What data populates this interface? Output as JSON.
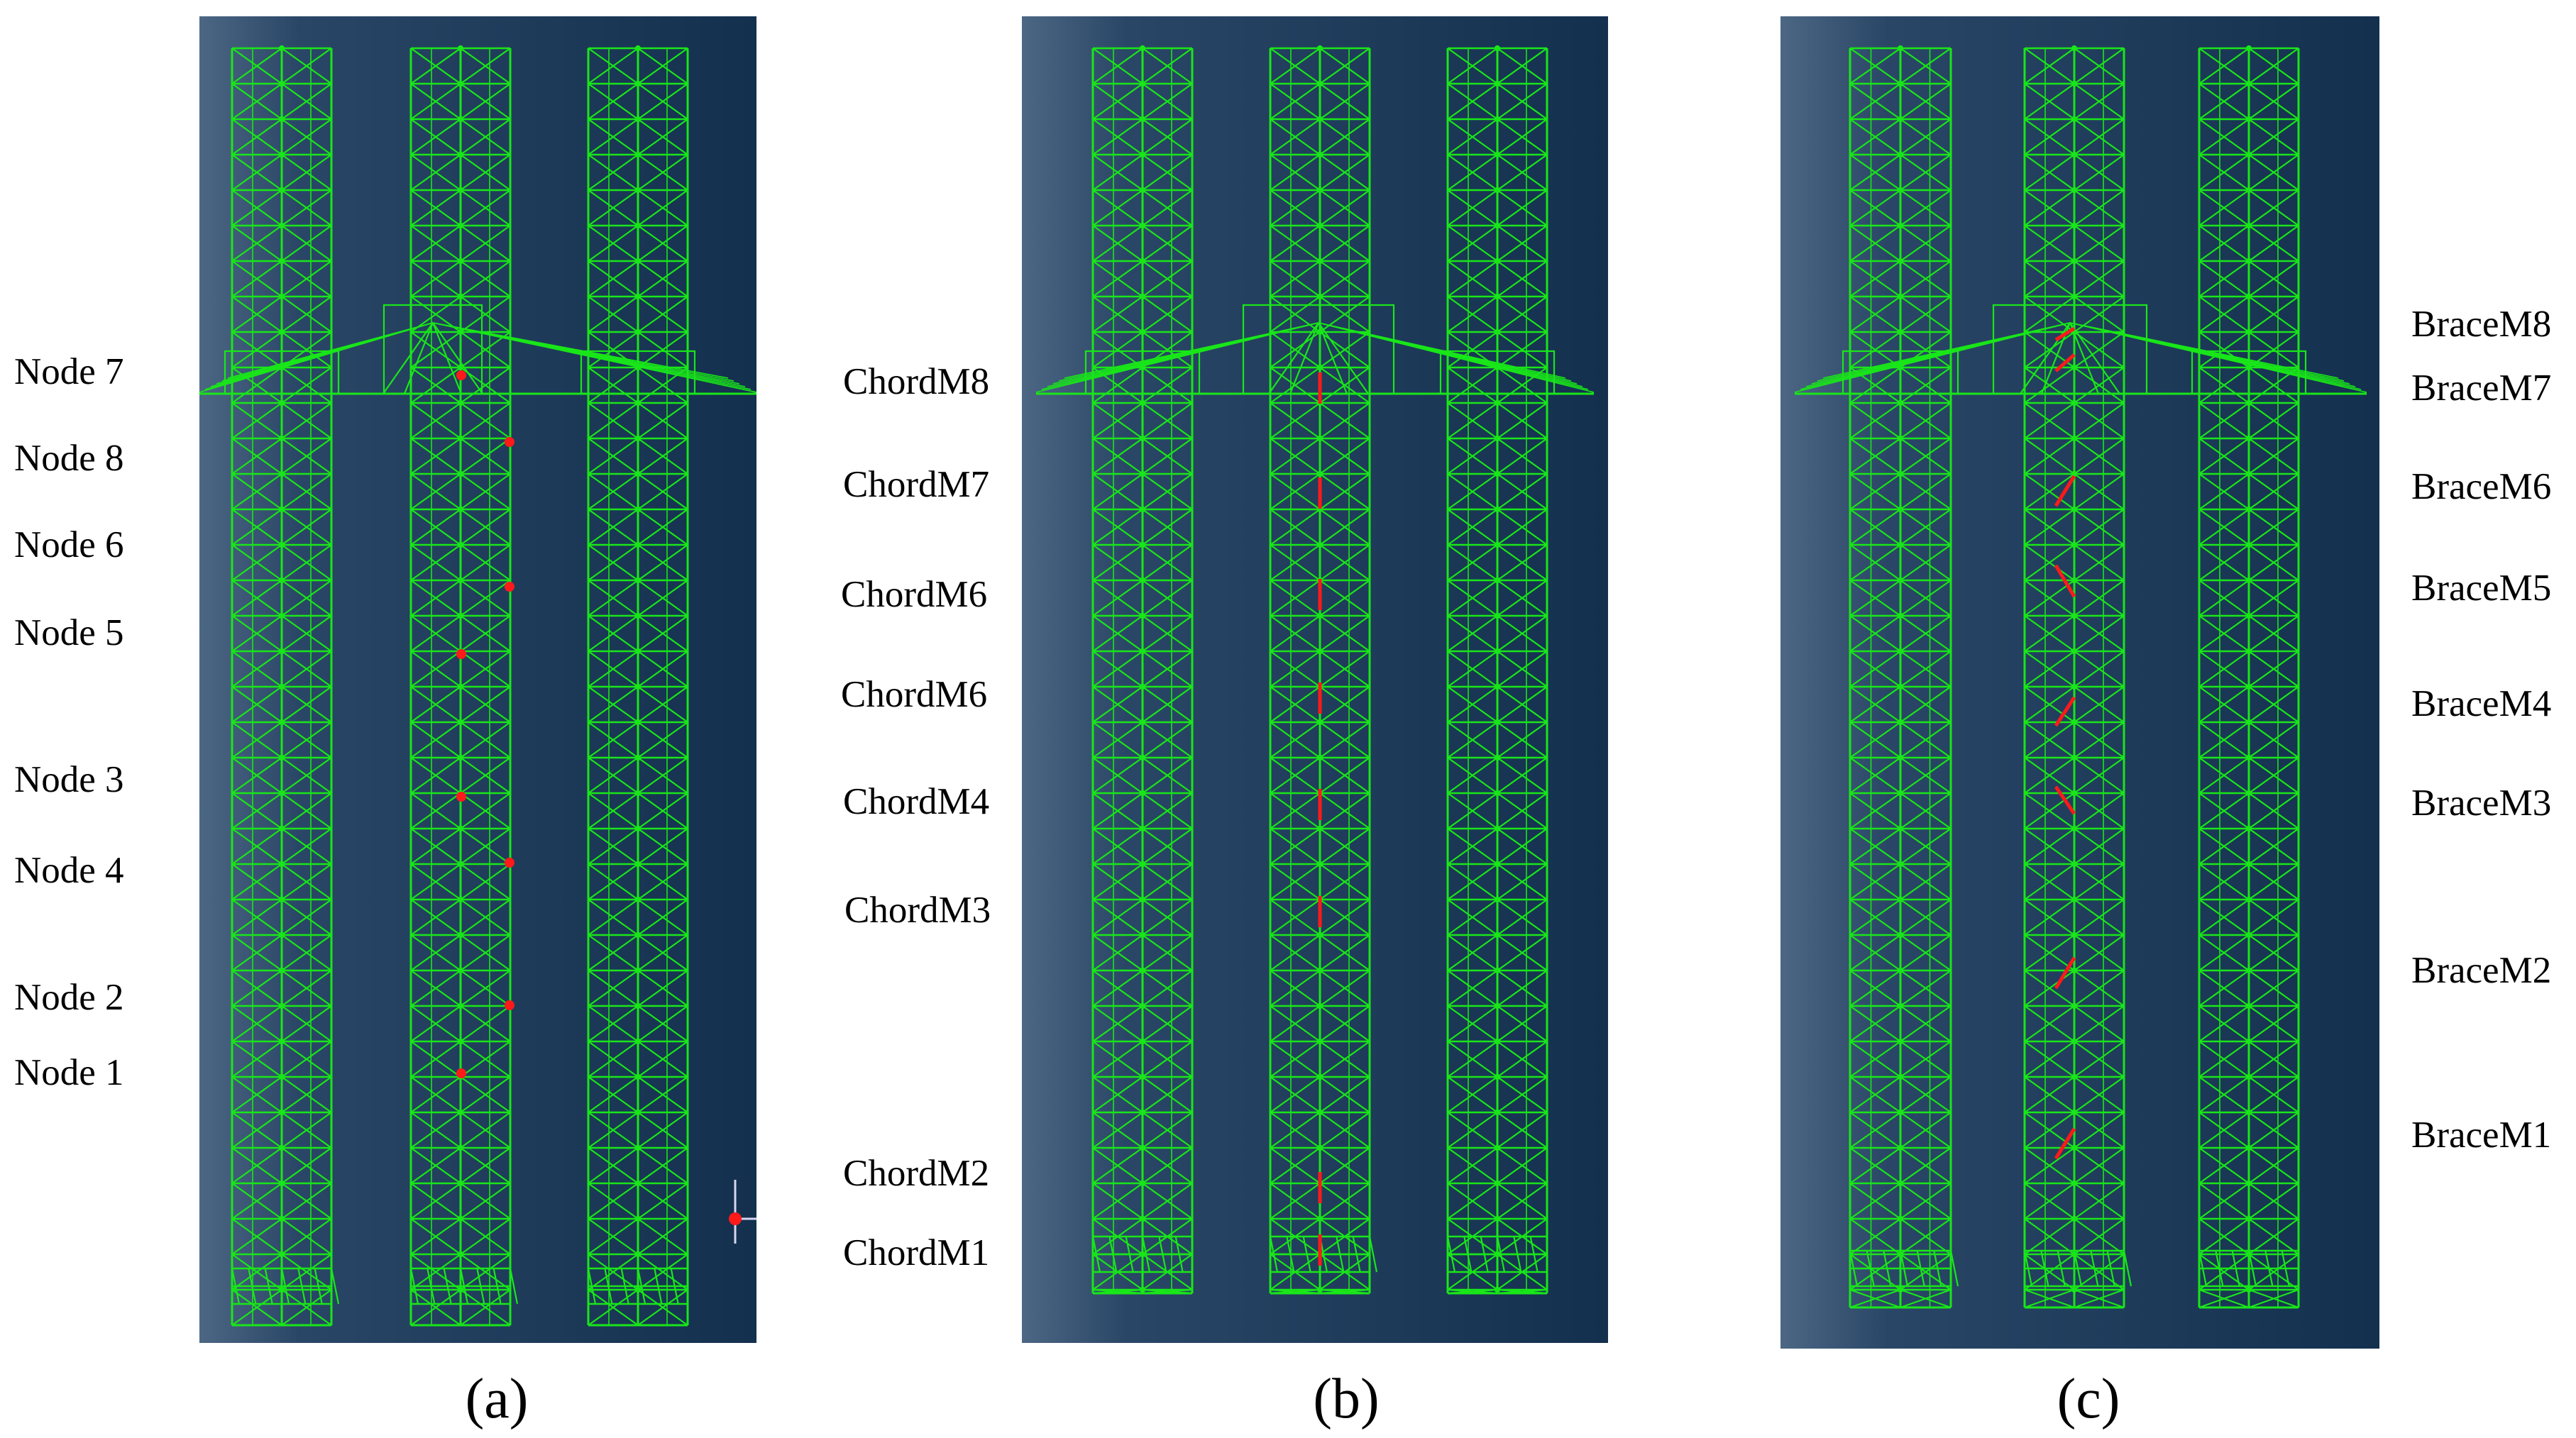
{
  "panels": [
    {
      "id": "a",
      "caption": "(a)",
      "highlight": "nodes",
      "labels": [
        "Node 7",
        "Node 8",
        "Node 6",
        "Node 5",
        "Node 3",
        "Node 4",
        "Node 2",
        "Node 1"
      ]
    },
    {
      "id": "b",
      "caption": "(b)",
      "highlight": "chords",
      "labels": [
        "ChordM8",
        "ChordM7",
        "ChordM6",
        "ChordM6",
        "ChordM4",
        "ChordM3",
        "ChordM2",
        "ChordM1"
      ]
    },
    {
      "id": "c",
      "caption": "(c)",
      "highlight": "braces",
      "labels": [
        "BraceM8",
        "BraceM7",
        "BraceM6",
        "BraceM5",
        "BraceM4",
        "BraceM3",
        "BraceM2",
        "BraceM1"
      ]
    }
  ],
  "colors": {
    "truss": "#19e619",
    "highlight": "#ff1a1a",
    "bg_dark": "#13304e",
    "bg_light": "#4c6784"
  }
}
